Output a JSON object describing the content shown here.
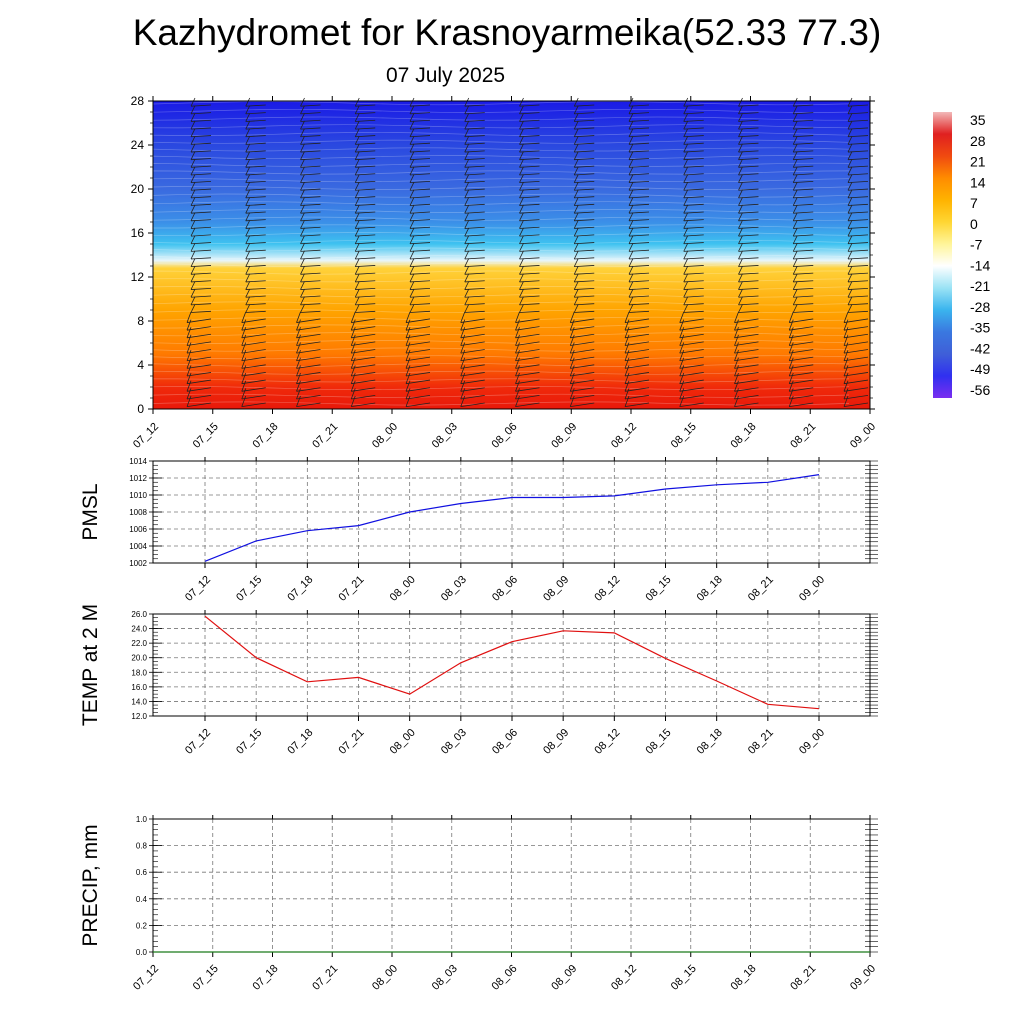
{
  "header": {
    "title": "Kazhydromet for Krasnoyarmeika(52.33 77.3)",
    "subtitle": "07 July 2025"
  },
  "chart_data": [
    {
      "name": "temperature-cross-section",
      "type": "heatmap",
      "x_ticks": [
        "07_12",
        "07_15",
        "07_18",
        "07_21",
        "08_00",
        "08_03",
        "08_06",
        "08_09",
        "08_12",
        "08_15",
        "08_18",
        "08_21",
        "09_00"
      ],
      "y_ticks": [
        "0",
        "4",
        "8",
        "12",
        "16",
        "20",
        "24",
        "28"
      ],
      "ylim": [
        0,
        28
      ],
      "colorbar": {
        "labels": [
          "35",
          "28",
          "21",
          "14",
          "7",
          "0",
          "-7",
          "-14",
          "-21",
          "-28",
          "-35",
          "-42",
          "-49",
          "-56"
        ],
        "colors": [
          "#f2b8b8",
          "#e02020",
          "#f04a10",
          "#ff8c00",
          "#ffb300",
          "#ffd633",
          "#fff59a",
          "#ffffff",
          "#9be3f5",
          "#3ab4ee",
          "#3a78e0",
          "#3f5fd8",
          "#3030f0",
          "#7a2ef0"
        ]
      },
      "field_layers": [
        {
          "top": 28,
          "color": "#1a1ae6"
        },
        {
          "top": 24,
          "color": "#2a48e0"
        },
        {
          "top": 20,
          "color": "#3a6ae0"
        },
        {
          "top": 17,
          "color": "#3b8fe8"
        },
        {
          "top": 15,
          "color": "#3ec2f0"
        },
        {
          "top": 13.5,
          "color": "#e8f6fb"
        },
        {
          "top": 12.8,
          "color": "#ffd23a"
        },
        {
          "top": 9,
          "color": "#ffa400"
        },
        {
          "top": 5,
          "color": "#ff7a00"
        },
        {
          "top": 2,
          "color": "#f02a0a"
        }
      ],
      "wind_barbs": "present"
    },
    {
      "name": "pmsl",
      "type": "line",
      "ylabel": "PMSL",
      "x": [
        "07_12",
        "07_15",
        "07_18",
        "07_21",
        "08_00",
        "08_03",
        "08_06",
        "08_09",
        "08_12",
        "08_15",
        "08_18",
        "08_21",
        "09_00"
      ],
      "y": [
        1002.2,
        1004.6,
        1005.8,
        1006.4,
        1008.0,
        1009.0,
        1009.7,
        1009.7,
        1009.9,
        1010.7,
        1011.2,
        1011.5,
        1012.4
      ],
      "y_ticks": [
        "1002",
        "1004",
        "1006",
        "1008",
        "1010",
        "1012",
        "1014"
      ],
      "ylim": [
        1002,
        1014
      ],
      "color": "#1010e0",
      "grid": true
    },
    {
      "name": "temp-2m",
      "type": "line",
      "ylabel": "TEMP at 2 M",
      "x": [
        "07_12",
        "07_15",
        "07_18",
        "07_21",
        "08_00",
        "08_03",
        "08_06",
        "08_09",
        "08_12",
        "08_15",
        "08_18",
        "08_21",
        "09_00"
      ],
      "y": [
        25.7,
        20.0,
        16.7,
        17.3,
        15.0,
        19.3,
        22.2,
        23.7,
        23.4,
        19.9,
        16.8,
        13.6,
        13.0
      ],
      "y_ticks": [
        "12.0",
        "14.0",
        "16.0",
        "18.0",
        "20.0",
        "22.0",
        "24.0",
        "26.0"
      ],
      "ylim": [
        12,
        26
      ],
      "color": "#e01010",
      "grid": true
    },
    {
      "name": "precip",
      "type": "line",
      "ylabel": "PRECIP, mm",
      "x": [
        "07_12",
        "07_15",
        "07_18",
        "07_21",
        "08_00",
        "08_03",
        "08_06",
        "08_09",
        "08_12",
        "08_15",
        "08_18",
        "08_21",
        "09_00"
      ],
      "y": [
        0,
        0,
        0,
        0,
        0,
        0,
        0,
        0,
        0,
        0,
        0,
        0,
        0
      ],
      "y_ticks": [
        "0.0",
        "0.2",
        "0.4",
        "0.6",
        "0.8",
        "1.0"
      ],
      "ylim": [
        0,
        1
      ],
      "color": "#1a7a1a",
      "grid": true
    }
  ]
}
